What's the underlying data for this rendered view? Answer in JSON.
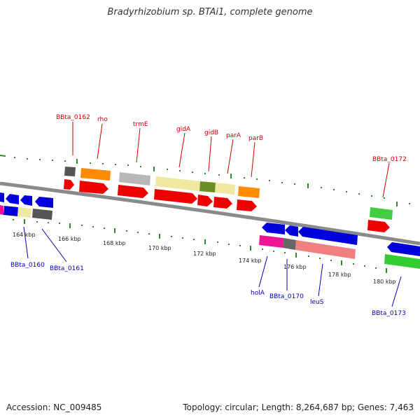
{
  "title": "Bradyrhizobium sp. BTAi1, complete genome",
  "footer": {
    "accession": "Accession: NC_009485",
    "stats": "Topology: circular; Length: 8,264,687 bp; Genes: 7,463"
  },
  "colors": {
    "backbone": "#808080",
    "tick": "#2e8b2e",
    "label_top": "#cc0000",
    "label_bottom": "#0000bb"
  },
  "ticks": [
    "164 kbp",
    "166 kbp",
    "168 kbp",
    "170 kbp",
    "172 kbp",
    "174 kbp",
    "176 kbp",
    "178 kbp",
    "180 kbp"
  ],
  "labels_top": [
    "BBta_0162",
    "rho",
    "trmE",
    "gidA",
    "gidB",
    "parA",
    "parB",
    "BBta_0172"
  ],
  "labels_bottom": [
    "BBta_0160",
    "BBta_0161",
    "holA",
    "BBta_0170",
    "leuS",
    "BBta_0173"
  ]
}
